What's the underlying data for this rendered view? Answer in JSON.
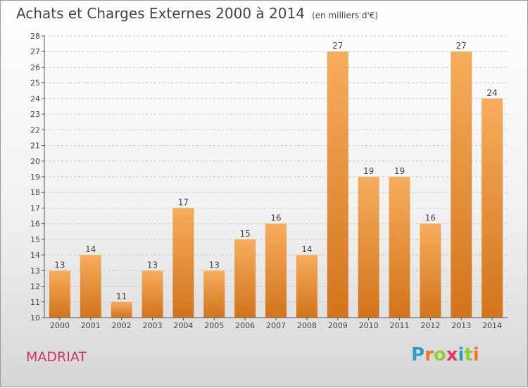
{
  "header": {
    "title": "Achats et Charges Externes 2000 à 2014",
    "unit": "(en milliers d'€)"
  },
  "footer": {
    "commune": "MADRIAT",
    "logo_letters": [
      "P",
      "r",
      "o",
      "x",
      "i",
      "t",
      "i"
    ],
    "logo_colors": [
      "#3399cc",
      "#ee7722",
      "#99cc33",
      "#ee3366",
      "#3399cc",
      "#99cc33",
      "#ee7722"
    ]
  },
  "colors": {
    "bar": "#f0922e",
    "bar_highlight": "#f6ad5c",
    "bar_shadow": "#d2741c",
    "grid": "#c8c8c8",
    "axis": "#555555"
  },
  "chart_data": {
    "type": "bar",
    "title": "Achats et Charges Externes 2000 à 2014",
    "subtitle": "(en milliers d'€)",
    "xlabel": "",
    "ylabel": "",
    "categories": [
      "2000",
      "2001",
      "2002",
      "2003",
      "2004",
      "2005",
      "2006",
      "2007",
      "2008",
      "2009",
      "2010",
      "2011",
      "2012",
      "2013",
      "2014"
    ],
    "values": [
      13,
      14,
      11,
      13,
      17,
      13,
      15,
      16,
      14,
      27,
      19,
      19,
      16,
      27,
      24
    ],
    "ylim": [
      10,
      28
    ],
    "yticks": [
      10,
      11,
      12,
      13,
      14,
      15,
      16,
      17,
      18,
      19,
      20,
      21,
      22,
      23,
      24,
      25,
      26,
      27,
      28
    ],
    "grid": "dashed horizontal",
    "legend": "none"
  }
}
